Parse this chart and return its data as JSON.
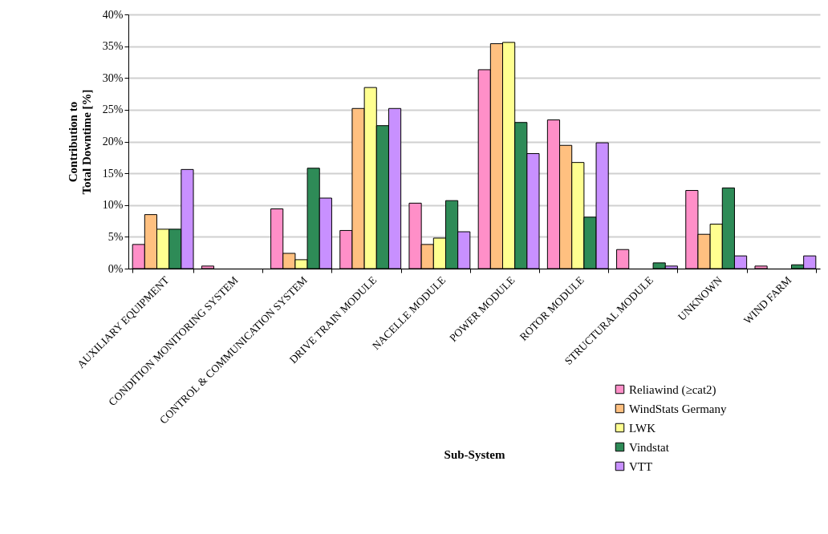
{
  "chart_data": {
    "type": "bar",
    "xlabel": "Sub-System",
    "ylabel": "Contribution to\nTotal Downtime [%]",
    "categories": [
      "AUXILIARY EQUIPMENT",
      "CONDITION MONITORING SYSTEM",
      "CONTROL & COMMUNICATION SYSTEM",
      "DRIVE TRAIN MODULE",
      "NACELLE MODULE",
      "POWER MODULE",
      "ROTOR MODULE",
      "STRUCTURAL MODULE",
      "UNKNOWN",
      "WIND FARM"
    ],
    "series": [
      {
        "name": "Reliawind (≥cat2)",
        "color": "#ff8fc8",
        "values": [
          3.8,
          0.4,
          9.4,
          6.0,
          10.3,
          31.3,
          23.4,
          3.0,
          12.3,
          0.4
        ]
      },
      {
        "name": "WindStats Germany",
        "color": "#ffc080",
        "values": [
          8.5,
          null,
          2.4,
          25.2,
          3.8,
          35.4,
          19.4,
          null,
          5.4,
          null
        ]
      },
      {
        "name": "LWK",
        "color": "#ffff90",
        "values": [
          6.2,
          null,
          1.4,
          28.5,
          4.8,
          35.6,
          16.7,
          null,
          7.0,
          null
        ]
      },
      {
        "name": "Vindstat",
        "color": "#2e8b57",
        "values": [
          6.2,
          null,
          15.8,
          22.5,
          10.7,
          23.0,
          8.1,
          0.9,
          12.7,
          0.6
        ]
      },
      {
        "name": "VTT",
        "color": "#c890ff",
        "values": [
          15.6,
          null,
          11.1,
          25.2,
          5.8,
          18.1,
          19.8,
          0.4,
          2.0,
          2.0
        ]
      }
    ],
    "ylim": [
      0,
      40
    ],
    "yticks": [
      {
        "value": 0,
        "label": "0%"
      },
      {
        "value": 5,
        "label": "5%"
      },
      {
        "value": 10,
        "label": "10%"
      },
      {
        "value": 15,
        "label": "15%"
      },
      {
        "value": 20,
        "label": "20%"
      },
      {
        "value": 25,
        "label": "25%"
      },
      {
        "value": 30,
        "label": "30%"
      },
      {
        "value": 35,
        "label": "35%"
      },
      {
        "value": 40,
        "label": "40%"
      }
    ],
    "grid": "y",
    "legend": "bottom right"
  }
}
